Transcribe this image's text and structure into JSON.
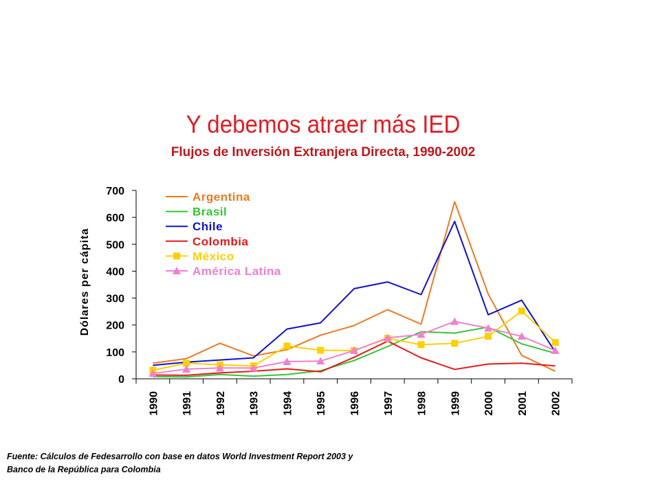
{
  "title": "Y debemos atraer más IED",
  "subtitle": "Flujos de Inversión Extranjera Directa, 1990-2002",
  "source_line1": "Fuente: Cálculos de Fedesarrollo con base en datos World Investment Report 2003 y",
  "source_line2": "Banco de la República para Colombia",
  "chart_data": {
    "type": "line",
    "ylabel": "Dólares per cápita",
    "xlabel": "",
    "ylim": [
      0,
      700
    ],
    "yticks": [
      0,
      100,
      200,
      300,
      400,
      500,
      600,
      700
    ],
    "categories": [
      "1990",
      "1991",
      "1992",
      "1993",
      "1994",
      "1995",
      "1996",
      "1997",
      "1998",
      "1999",
      "2000",
      "2001",
      "2002"
    ],
    "legend_position": "top-left",
    "series": [
      {
        "name": "Argentina",
        "color": "#f07820",
        "marker": "none",
        "values": [
          58,
          75,
          132,
          85,
          108,
          162,
          198,
          257,
          203,
          658,
          315,
          87,
          28
        ]
      },
      {
        "name": "Brasil",
        "color": "#33c633",
        "marker": "none",
        "values": [
          8,
          7,
          16,
          10,
          16,
          30,
          68,
          120,
          175,
          170,
          192,
          130,
          95
        ]
      },
      {
        "name": "Chile",
        "color": "#1010d0",
        "marker": "none",
        "values": [
          50,
          62,
          70,
          78,
          185,
          208,
          335,
          360,
          313,
          585,
          238,
          292,
          100
        ]
      },
      {
        "name": "Colombia",
        "color": "#e81818",
        "marker": "none",
        "values": [
          14,
          13,
          22,
          28,
          37,
          26,
          80,
          140,
          78,
          35,
          55,
          58,
          48
        ]
      },
      {
        "name": "México",
        "color": "#ffd000",
        "marker": "square",
        "values": [
          32,
          58,
          52,
          48,
          122,
          106,
          105,
          150,
          127,
          132,
          158,
          252,
          135
        ]
      },
      {
        "name": "América Latina",
        "color": "#f080d0",
        "marker": "triangle",
        "values": [
          20,
          36,
          40,
          40,
          64,
          66,
          105,
          152,
          165,
          213,
          188,
          158,
          105
        ]
      }
    ]
  }
}
